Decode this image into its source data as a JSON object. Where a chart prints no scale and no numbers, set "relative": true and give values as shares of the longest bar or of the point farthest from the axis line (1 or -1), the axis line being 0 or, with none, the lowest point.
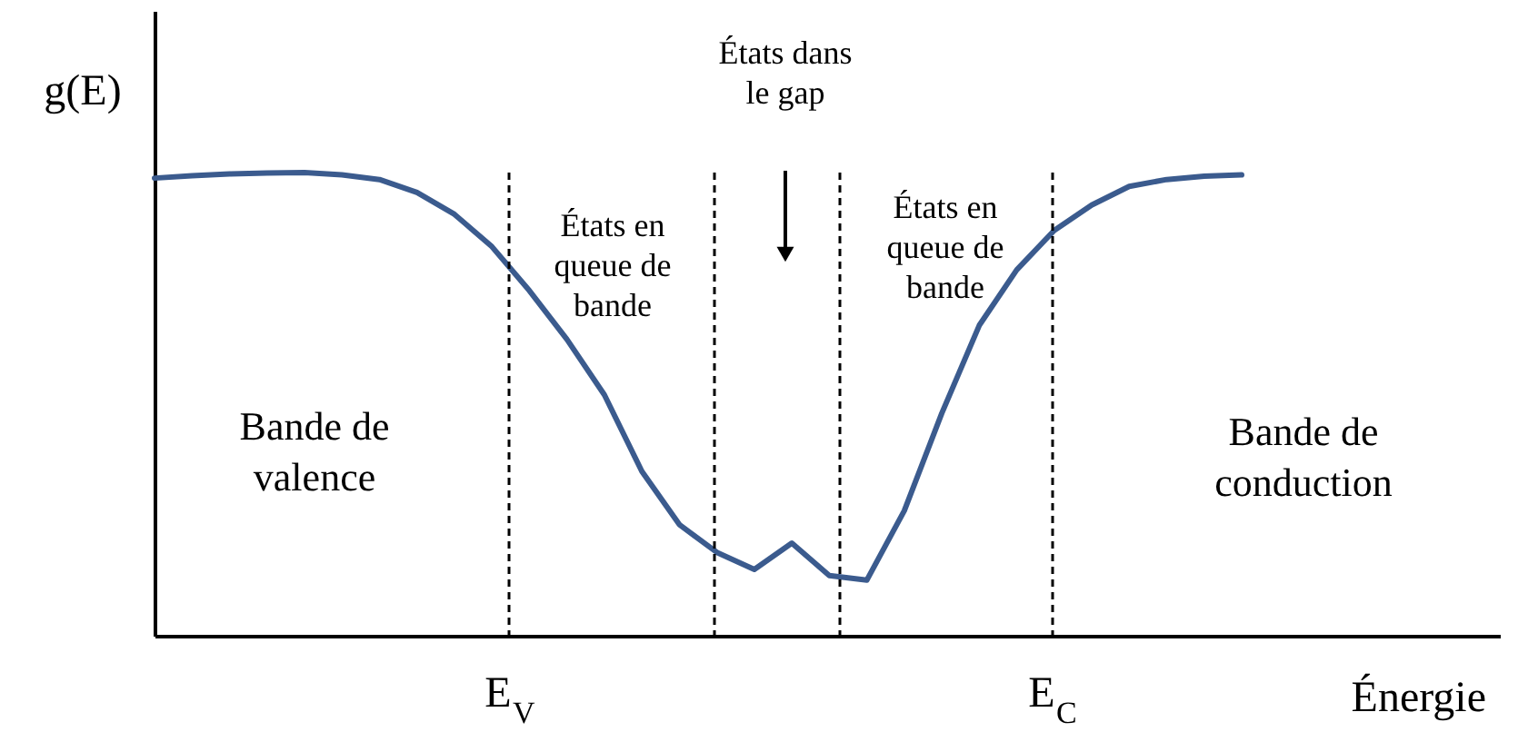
{
  "chart_data": {
    "type": "line",
    "relative": true,
    "xlabel": "Énergie",
    "ylabel": "g(E)",
    "categories": [
      null,
      null,
      null,
      null,
      null,
      null,
      null,
      null,
      null,
      null,
      null,
      null,
      null,
      null,
      null,
      null,
      null,
      null,
      null,
      null,
      null,
      null,
      null,
      null,
      null,
      null,
      null,
      null,
      null,
      null
    ],
    "line_style": "solid",
    "series": [
      {
        "color": "#3b5b8e",
        "values": [
          0.988,
          0.993,
          0.997,
          0.999,
          1.0,
          0.995,
          0.985,
          0.957,
          0.91,
          0.84,
          0.745,
          0.64,
          0.52,
          0.355,
          0.24,
          0.18,
          0.143,
          0.2,
          0.13,
          0.12,
          0.27,
          0.48,
          0.67,
          0.79,
          0.875,
          0.93,
          0.97,
          0.985,
          0.992,
          0.995
        ]
      }
    ],
    "ref_lines": [
      {
        "axis": "x",
        "label": "E$_{V}$",
        "line_style": "dashed",
        "color": "#000000"
      },
      {
        "axis": "x",
        "label": null,
        "line_style": "dashed",
        "color": "#000000"
      },
      {
        "axis": "x",
        "label": null,
        "line_style": "dashed",
        "color": "#000000"
      },
      {
        "axis": "x",
        "label": "E$_{C}$",
        "line_style": "dashed",
        "color": "#000000"
      }
    ],
    "annotations": [
      "Bande de\nvalence",
      "États en\nqueue de\nbande",
      "États dans\nle gap",
      "États en\nqueue de\nbande",
      "Bande de\nconduction"
    ]
  }
}
